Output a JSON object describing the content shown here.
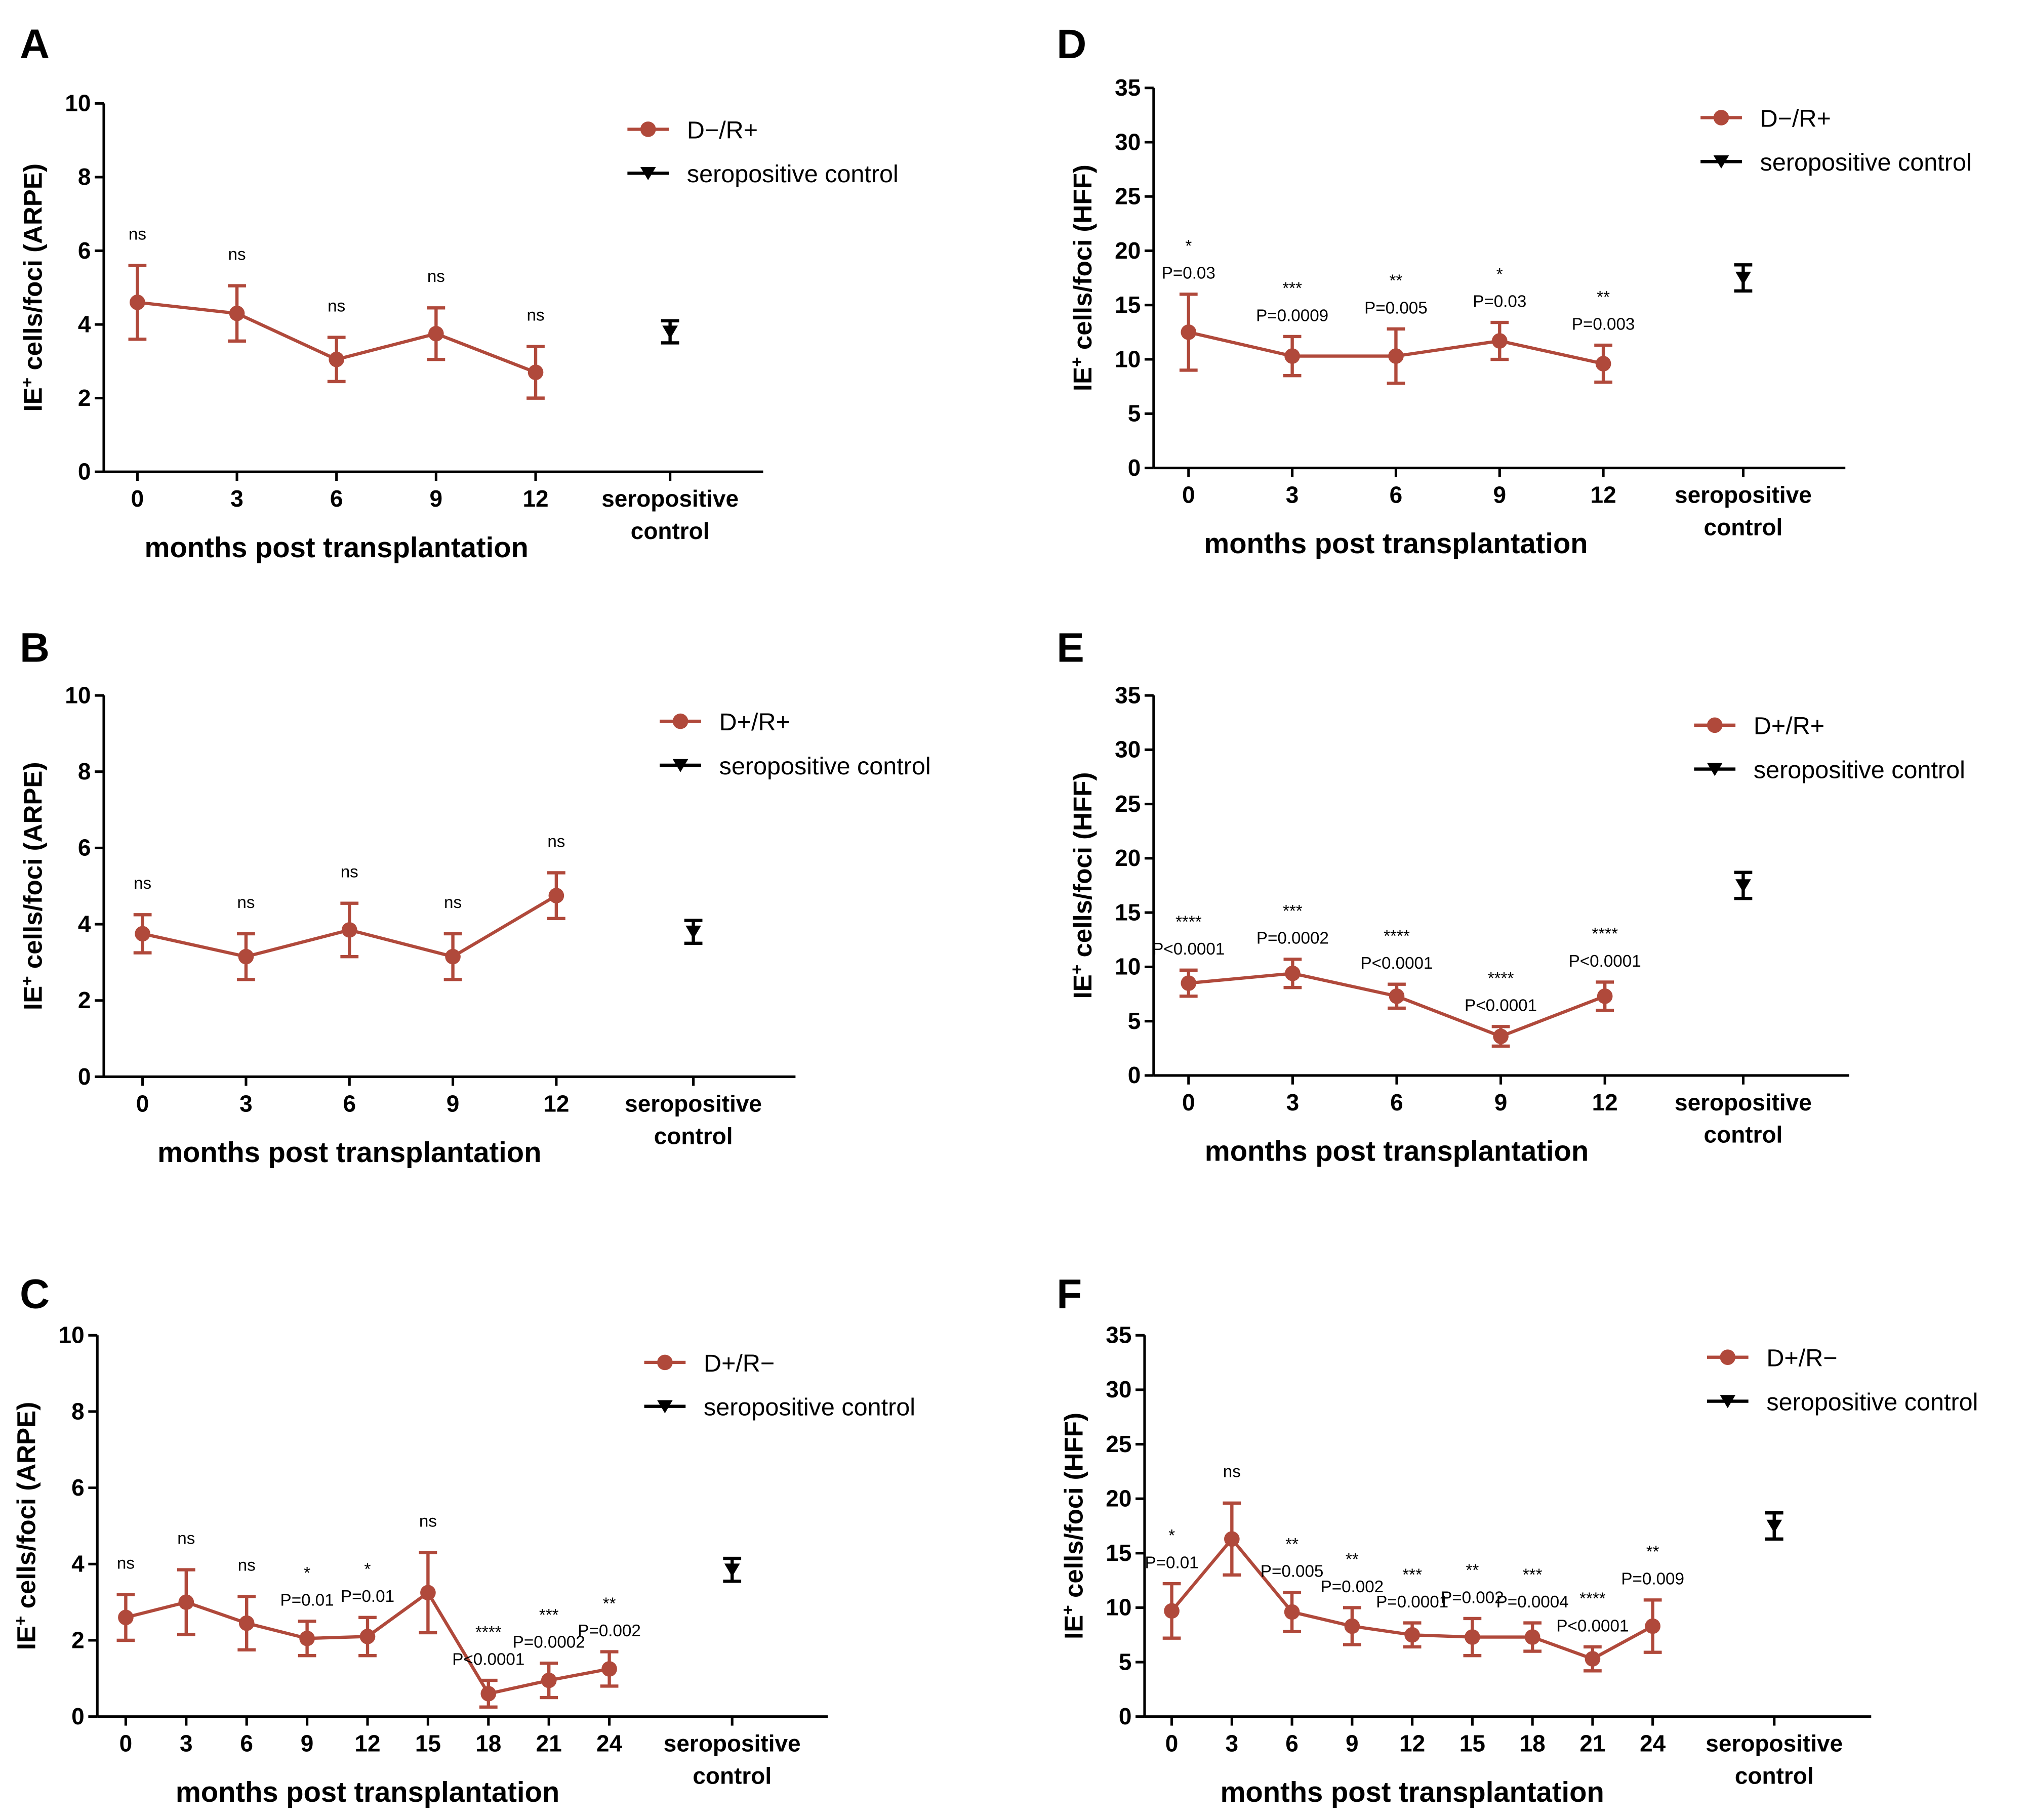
{
  "chart_data": [
    {
      "panel": "A",
      "type": "line",
      "y_label": [
        "IE",
        "+",
        " cells/foci (ARPE)"
      ],
      "x_label": "months post transplantation",
      "categories": [
        "0",
        "3",
        "6",
        "9",
        "12",
        "seropositive control"
      ],
      "series": [
        {
          "name": "D−/R+",
          "color": "#b0493b",
          "marker": "circle",
          "values": [
            4.6,
            4.3,
            3.05,
            3.75,
            2.7,
            null
          ],
          "errors": [
            1.0,
            0.75,
            0.6,
            0.7,
            0.7,
            null
          ]
        },
        {
          "name": "seropositive control",
          "color": "#000000",
          "marker": "triangle-down",
          "values": [
            null,
            null,
            null,
            null,
            null,
            3.8
          ],
          "errors": [
            null,
            null,
            null,
            null,
            null,
            0.3
          ]
        }
      ],
      "significance": [
        "ns",
        "ns",
        "ns",
        "ns",
        "ns",
        null
      ],
      "p_values": [
        null,
        null,
        null,
        null,
        null,
        null
      ],
      "ylim": [
        0,
        10
      ],
      "yticks": [
        0,
        2,
        4,
        6,
        8,
        10
      ],
      "legend": "upper right"
    },
    {
      "panel": "B",
      "type": "line",
      "y_label": [
        "IE",
        "+",
        " cells/foci (ARPE)"
      ],
      "x_label": "months post transplantation",
      "categories": [
        "0",
        "3",
        "6",
        "9",
        "12",
        "seropositive control"
      ],
      "series": [
        {
          "name": "D+/R+",
          "color": "#b0493b",
          "marker": "circle",
          "values": [
            3.75,
            3.15,
            3.85,
            3.15,
            4.75,
            null
          ],
          "errors": [
            0.5,
            0.6,
            0.7,
            0.6,
            0.6,
            null
          ]
        },
        {
          "name": "seropositive control",
          "color": "#000000",
          "marker": "triangle-down",
          "values": [
            null,
            null,
            null,
            null,
            null,
            3.8
          ],
          "errors": [
            null,
            null,
            null,
            null,
            null,
            0.3
          ]
        }
      ],
      "significance": [
        "ns",
        "ns",
        "ns",
        "ns",
        "ns",
        null
      ],
      "p_values": [
        null,
        null,
        null,
        null,
        null,
        null
      ],
      "ylim": [
        0,
        10
      ],
      "yticks": [
        0,
        2,
        4,
        6,
        8,
        10
      ],
      "legend": "upper right"
    },
    {
      "panel": "C",
      "type": "line",
      "y_label": [
        "IE",
        "+",
        " cells/foci (ARPE)"
      ],
      "x_label": "months post transplantation",
      "categories": [
        "0",
        "3",
        "6",
        "9",
        "12",
        "15",
        "18",
        "21",
        "24",
        "seropositive control"
      ],
      "series": [
        {
          "name": "D+/R−",
          "color": "#b0493b",
          "marker": "circle",
          "values": [
            2.6,
            3.0,
            2.45,
            2.05,
            2.1,
            3.25,
            0.6,
            0.95,
            1.25,
            null
          ],
          "errors": [
            0.6,
            0.85,
            0.7,
            0.45,
            0.5,
            1.05,
            0.35,
            0.45,
            0.45,
            null
          ]
        },
        {
          "name": "seropositive control",
          "color": "#000000",
          "marker": "triangle-down",
          "values": [
            null,
            null,
            null,
            null,
            null,
            null,
            null,
            null,
            null,
            3.85
          ],
          "errors": [
            null,
            null,
            null,
            null,
            null,
            null,
            null,
            null,
            null,
            0.3
          ]
        }
      ],
      "significance": [
        "ns",
        "ns",
        "ns",
        "*",
        "*",
        "ns",
        "****",
        "***",
        "**",
        null
      ],
      "p_values": [
        null,
        null,
        null,
        "P=0.01",
        "P=0.01",
        null,
        "P<0.0001",
        "P=0.0002",
        "P=0.002",
        null
      ],
      "ylim": [
        0,
        10
      ],
      "yticks": [
        0,
        2,
        4,
        6,
        8,
        10
      ],
      "legend": "upper right"
    },
    {
      "panel": "D",
      "type": "line",
      "y_label": [
        "IE",
        "+",
        " cells/foci (HFF)"
      ],
      "x_label": "months post transplantation",
      "categories": [
        "0",
        "3",
        "6",
        "9",
        "12",
        "seropositive control"
      ],
      "series": [
        {
          "name": "D−/R+",
          "color": "#b0493b",
          "marker": "circle",
          "values": [
            12.5,
            10.3,
            10.3,
            11.7,
            9.6,
            null
          ],
          "errors": [
            3.5,
            1.8,
            2.5,
            1.7,
            1.7,
            null
          ]
        },
        {
          "name": "seropositive control",
          "color": "#000000",
          "marker": "triangle-down",
          "values": [
            null,
            null,
            null,
            null,
            null,
            17.5
          ],
          "errors": [
            null,
            null,
            null,
            null,
            null,
            1.2
          ]
        }
      ],
      "significance": [
        "*",
        "***",
        "**",
        "*",
        "**",
        null
      ],
      "p_values": [
        "P=0.03",
        "P=0.0009",
        "P=0.005",
        "P=0.03",
        "P=0.003",
        null
      ],
      "ylim": [
        0,
        35
      ],
      "yticks": [
        0,
        5,
        10,
        15,
        20,
        25,
        30,
        35
      ],
      "legend": "upper right"
    },
    {
      "panel": "E",
      "type": "line",
      "y_label": [
        "IE",
        "+",
        " cells/foci (HFF)"
      ],
      "x_label": "months post transplantation",
      "categories": [
        "0",
        "3",
        "6",
        "9",
        "12",
        "seropositive control"
      ],
      "series": [
        {
          "name": "D+/R+",
          "color": "#b0493b",
          "marker": "circle",
          "values": [
            8.5,
            9.4,
            7.3,
            3.6,
            7.3,
            null
          ],
          "errors": [
            1.2,
            1.3,
            1.1,
            0.9,
            1.3,
            null
          ]
        },
        {
          "name": "seropositive control",
          "color": "#000000",
          "marker": "triangle-down",
          "values": [
            null,
            null,
            null,
            null,
            null,
            17.5
          ],
          "errors": [
            null,
            null,
            null,
            null,
            null,
            1.2
          ]
        }
      ],
      "significance": [
        "****",
        "***",
        "****",
        "****",
        "****",
        null
      ],
      "p_values": [
        "P<0.0001",
        "P=0.0002",
        "P<0.0001",
        "P<0.0001",
        "P<0.0001",
        null
      ],
      "ylim": [
        0,
        35
      ],
      "yticks": [
        0,
        5,
        10,
        15,
        20,
        25,
        30,
        35
      ],
      "legend": "upper right"
    },
    {
      "panel": "F",
      "type": "line",
      "y_label": [
        "IE",
        "+",
        " cells/foci (HFF)"
      ],
      "x_label": "months post transplantation",
      "categories": [
        "0",
        "3",
        "6",
        "9",
        "12",
        "15",
        "18",
        "21",
        "24",
        "seropositive control"
      ],
      "series": [
        {
          "name": "D+/R−",
          "color": "#b0493b",
          "marker": "circle",
          "values": [
            9.7,
            16.3,
            9.6,
            8.3,
            7.5,
            7.3,
            7.3,
            5.3,
            8.3,
            null
          ],
          "errors": [
            2.5,
            3.3,
            1.8,
            1.7,
            1.1,
            1.7,
            1.3,
            1.1,
            2.4,
            null
          ]
        },
        {
          "name": "seropositive control",
          "color": "#000000",
          "marker": "triangle-down",
          "values": [
            null,
            null,
            null,
            null,
            null,
            null,
            null,
            null,
            null,
            17.5
          ],
          "errors": [
            null,
            null,
            null,
            null,
            null,
            null,
            null,
            null,
            null,
            1.2
          ]
        }
      ],
      "significance": [
        "*",
        "ns",
        "**",
        "**",
        "***",
        "**",
        "***",
        "****",
        "**",
        null
      ],
      "p_values": [
        "P=0.01",
        null,
        "P=0.005",
        "P=0.002",
        "P=0.0001",
        "P=0.002",
        "P=0.0004",
        "P<0.0001",
        "P=0.009",
        null
      ],
      "ylim": [
        0,
        35
      ],
      "yticks": [
        0,
        5,
        10,
        15,
        20,
        25,
        30,
        35
      ],
      "legend": "upper right"
    }
  ]
}
